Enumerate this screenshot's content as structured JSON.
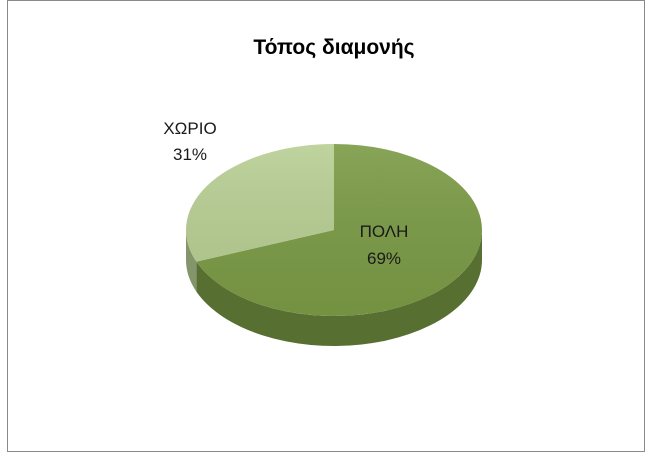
{
  "chart_data": {
    "type": "pie",
    "style": "3d",
    "title": "Τόπος διαμονής",
    "slices": [
      {
        "label": "ΠΟΛΗ",
        "value": 69,
        "value_label": "69%",
        "color": "#7a9a45"
      },
      {
        "label": "ΧΩΡΙΟ",
        "value": 31,
        "value_label": "31%",
        "color": "#b9cf95"
      }
    ],
    "legend": "none",
    "grid": false
  }
}
